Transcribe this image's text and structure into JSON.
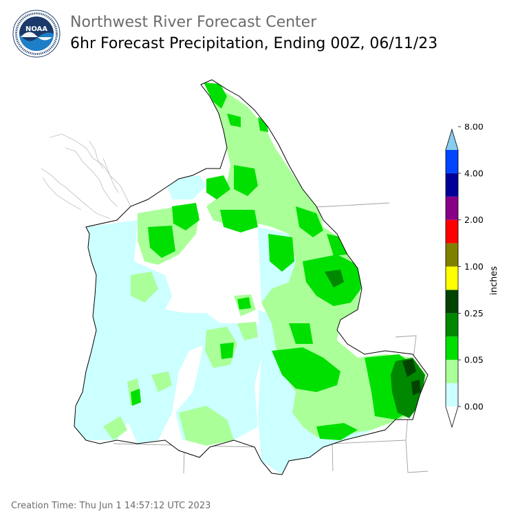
{
  "header": {
    "title": "Northwest River Forecast Center",
    "subtitle": "6hr Forecast Precipitation, Ending 00Z, 06/11/23"
  },
  "logo": {
    "text": "NOAA",
    "ring_text": "NATIONAL OCEANIC AND ATMOSPHERIC ADMINISTRATION · U.S. DEPARTMENT OF COMMERCE"
  },
  "colorbar": {
    "label": "inches",
    "tick_labels": [
      "0.00",
      "0.05",
      "0.25",
      "1.00",
      "2.00",
      "4.00",
      "8.00"
    ],
    "bins": [
      {
        "color": "#ffffff"
      },
      {
        "color": "#ccffff"
      },
      {
        "color": "#aaff99"
      },
      {
        "color": "#00e000"
      },
      {
        "color": "#008800"
      },
      {
        "color": "#004400"
      },
      {
        "color": "#ffff00"
      },
      {
        "color": "#808000"
      },
      {
        "color": "#ff0000"
      },
      {
        "color": "#880088"
      },
      {
        "color": "#000099"
      },
      {
        "color": "#0044ff"
      },
      {
        "color": "#88ccee"
      }
    ]
  },
  "colors": {
    "water": "#d0d0d0",
    "basin_outline": "#000000",
    "state_lines": "#999999"
  },
  "footer": {
    "creation_time": "Creation Time: Thu Jun 1 14:57:12 UTC 2023"
  }
}
